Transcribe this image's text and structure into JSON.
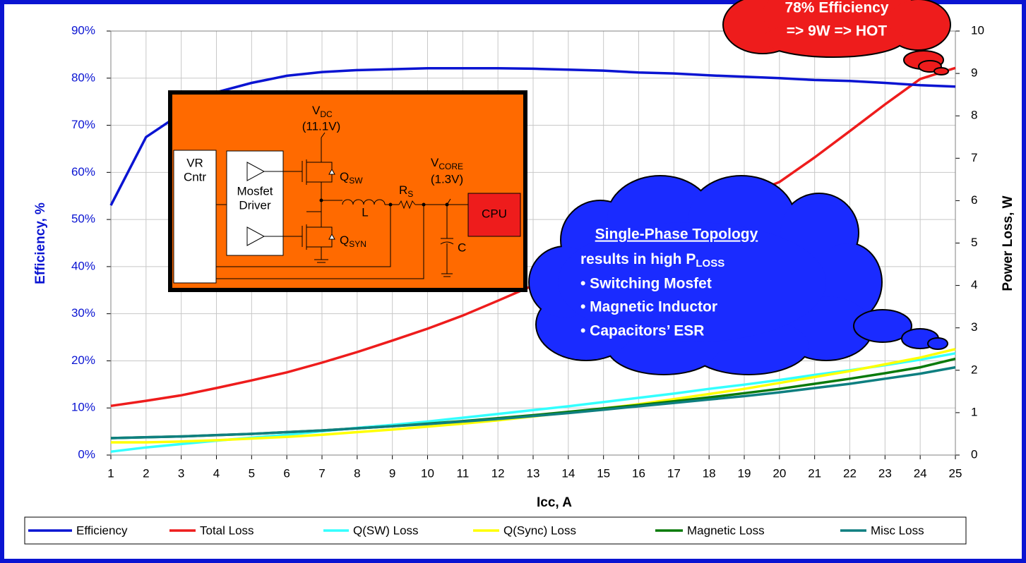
{
  "chart_data": {
    "type": "line",
    "x_label": "Icc, A",
    "y_label": "Efficiency, %",
    "y2_label": "Power Loss, W",
    "x": [
      1,
      2,
      3,
      4,
      5,
      6,
      7,
      8,
      9,
      10,
      11,
      12,
      13,
      14,
      15,
      16,
      17,
      18,
      19,
      20,
      21,
      22,
      23,
      24,
      25
    ],
    "xlim": [
      1,
      25
    ],
    "xticks": [
      1,
      2,
      3,
      4,
      5,
      6,
      7,
      8,
      9,
      10,
      11,
      12,
      13,
      14,
      15,
      16,
      17,
      18,
      19,
      20,
      21,
      22,
      23,
      24,
      25
    ],
    "ylim": [
      0,
      90
    ],
    "yticks": [
      {
        "value": 0,
        "label": "0%"
      },
      {
        "value": 10,
        "label": "10%"
      },
      {
        "value": 20,
        "label": "20%"
      },
      {
        "value": 30,
        "label": "30%"
      },
      {
        "value": 40,
        "label": "40%"
      },
      {
        "value": 50,
        "label": "50%"
      },
      {
        "value": 60,
        "label": "60%"
      },
      {
        "value": 70,
        "label": "70%"
      },
      {
        "value": 80,
        "label": "80%"
      },
      {
        "value": 90,
        "label": "90%"
      }
    ],
    "y2lim": [
      0,
      10
    ],
    "y2ticks": [
      0,
      1,
      2,
      3,
      4,
      5,
      6,
      7,
      8,
      9,
      10
    ],
    "grid": true,
    "legend": "bottom",
    "series": [
      {
        "name": "Efficiency",
        "color": "#0a14d2",
        "values": [
          53,
          67.5,
          72.5,
          77,
          79,
          80.5,
          81.3,
          81.7,
          81.9,
          82.1,
          82.1,
          82.1,
          82,
          81.8,
          81.6,
          81.2,
          81,
          80.6,
          80.3,
          80,
          79.6,
          79.4,
          79,
          78.5,
          78.2
        ]
      },
      {
        "name": "Total Loss",
        "color": "#ee1c1c",
        "axis": "y2",
        "values": [
          1.16,
          1.28,
          1.41,
          1.58,
          1.76,
          1.95,
          2.18,
          2.43,
          2.7,
          2.98,
          3.29,
          3.64,
          4.0,
          4.35,
          4.7,
          5.05,
          5.4,
          5.75,
          6.1,
          6.44,
          7.02,
          7.64,
          8.27,
          8.87,
          9.13
        ]
      },
      {
        "name": "Q(SW) Loss",
        "color": "#33ffff",
        "axis": "y2",
        "values": [
          0.08,
          0.18,
          0.26,
          0.34,
          0.41,
          0.48,
          0.56,
          0.64,
          0.71,
          0.79,
          0.88,
          0.97,
          1.06,
          1.15,
          1.25,
          1.35,
          1.45,
          1.56,
          1.66,
          1.77,
          1.89,
          2.0,
          2.12,
          2.25,
          2.4
        ]
      },
      {
        "name": "Q(Sync) Loss",
        "color": "#ffff00",
        "axis": "y2",
        "values": [
          0.3,
          0.3,
          0.32,
          0.35,
          0.39,
          0.43,
          0.48,
          0.54,
          0.6,
          0.67,
          0.74,
          0.82,
          0.91,
          1.0,
          1.1,
          1.2,
          1.32,
          1.44,
          1.56,
          1.7,
          1.84,
          1.98,
          2.14,
          2.3,
          2.5
        ]
      },
      {
        "name": "Magnetic Loss",
        "color": "#0a7a0a",
        "axis": "y2",
        "values": [
          0.4,
          0.42,
          0.44,
          0.47,
          0.5,
          0.54,
          0.58,
          0.63,
          0.68,
          0.74,
          0.8,
          0.87,
          0.94,
          1.02,
          1.1,
          1.18,
          1.27,
          1.36,
          1.46,
          1.56,
          1.68,
          1.8,
          1.93,
          2.07,
          2.27
        ]
      },
      {
        "name": "Misc Loss",
        "color": "#0e7f80",
        "axis": "y2",
        "values": [
          0.4,
          0.42,
          0.44,
          0.47,
          0.5,
          0.54,
          0.58,
          0.63,
          0.68,
          0.73,
          0.79,
          0.85,
          0.92,
          0.99,
          1.07,
          1.15,
          1.23,
          1.31,
          1.39,
          1.48,
          1.58,
          1.68,
          1.8,
          1.92,
          2.07
        ]
      }
    ],
    "inset": {
      "vdc": "V",
      "vdc_sub": "DC",
      "vdc_value": "(11.1V)",
      "vr": "VR",
      "cntr": "Cntr",
      "mosfet": "Mosfet",
      "driver": "Driver",
      "qsw": "Q",
      "qsw_sub": "SW",
      "qsyn": "Q",
      "qsyn_sub": "SYN",
      "l": "L",
      "rs": "R",
      "rs_sub": "S",
      "vcore": "V",
      "vcore_sub": "CORE",
      "vcore_value": "(1.3V)",
      "cpu": "CPU",
      "c": "C"
    },
    "callouts": [
      {
        "lines": [
          "78% Efficiency",
          "=> 9W => HOT"
        ]
      },
      {
        "title": "Single-Phase Topology",
        "line2": "results in high P",
        "line2_sub": "LOSS",
        "bullets": [
          "• Switching Mosfet",
          "• Magnetic Inductor",
          "• Capacitors’ ESR"
        ]
      }
    ]
  }
}
